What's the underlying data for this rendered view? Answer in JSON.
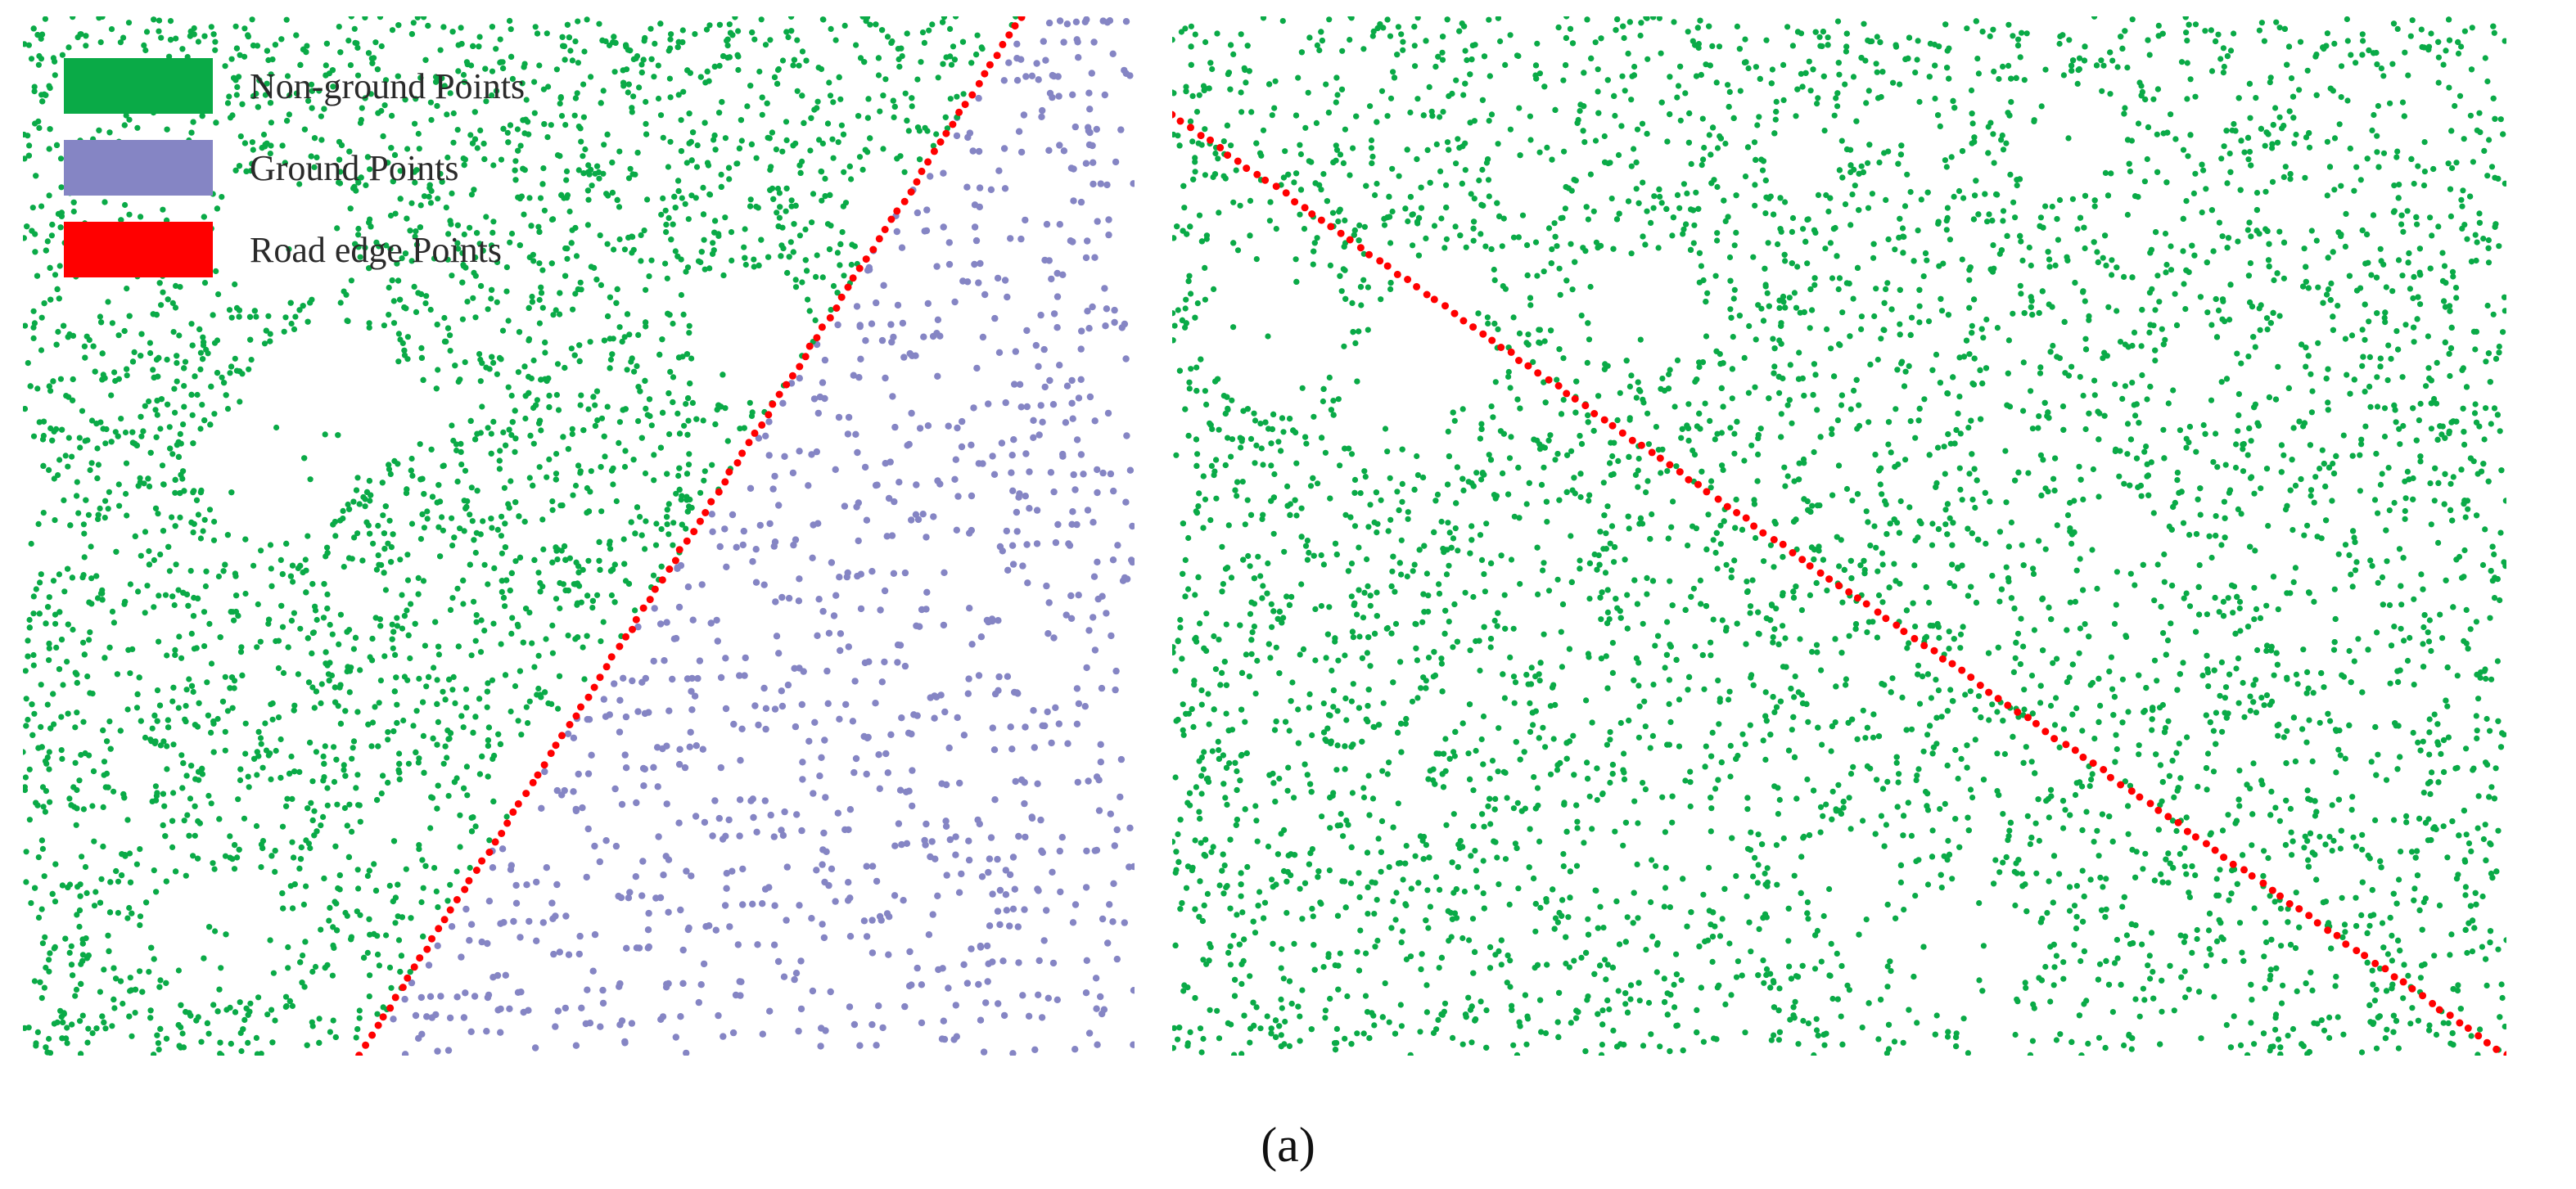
{
  "legend": [
    {
      "label": "Non-ground Points",
      "color": "#0aaa47"
    },
    {
      "label": "Ground Points",
      "color": "#8585c4"
    },
    {
      "label": "Road edge Points",
      "color": "#ff0000"
    }
  ],
  "caption": "(a)",
  "colors": {
    "background": "#ffffff",
    "non_ground": "#0aaa47",
    "ground": "#8585c4",
    "road_edge": "#ff0000"
  }
}
